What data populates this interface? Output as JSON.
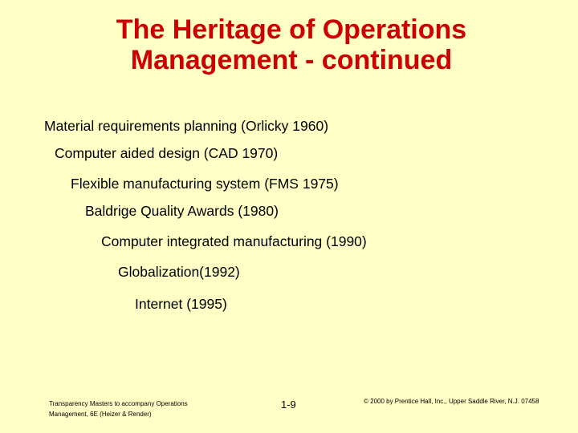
{
  "slide": {
    "title_line1": "The Heritage of Operations",
    "title_line2": "Management - continued",
    "title_color": "#CC0000",
    "background_color": "#FFFFC6",
    "items": [
      "Material requirements planning (Orlicky 1960)",
      "Computer aided design (CAD 1970)",
      "Flexible manufacturing system (FMS 1975)",
      "Baldrige Quality Awards (1980)",
      "Computer integrated manufacturing (1990)",
      "Globalization(1992)",
      "Internet (1995)"
    ]
  },
  "footer": {
    "left_line1": "Transparency Masters to accompany Operations",
    "left_line2": "Management, 6E (Heizer & Render)",
    "page_number": "1-9",
    "copyright": "© 2000 by Prentice Hall, Inc., Upper Saddle River, N.J. 07458"
  }
}
